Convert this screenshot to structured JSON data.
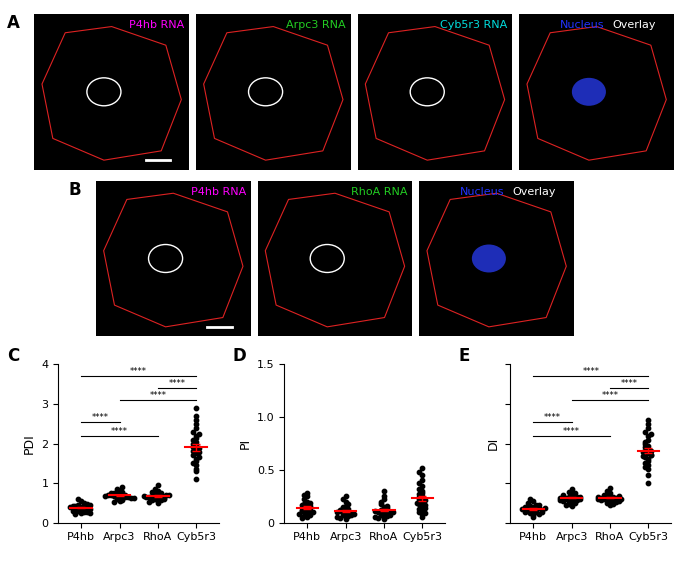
{
  "image_panels": [
    {
      "panel": "A",
      "images": [
        {
          "labels": [
            {
              "text": "P4hb RNA",
              "color": "#ff00ff"
            }
          ]
        },
        {
          "labels": [
            {
              "text": "Arpc3 RNA",
              "color": "#22cc22"
            }
          ]
        },
        {
          "labels": [
            {
              "text": "Cyb5r3 RNA",
              "color": "#00dddd"
            }
          ]
        },
        {
          "labels": [
            {
              "text": "Nucleus",
              "color": "#2233ff"
            },
            {
              "text": "Overlay",
              "color": "#ffffff"
            }
          ]
        }
      ]
    },
    {
      "panel": "B",
      "images": [
        {
          "labels": [
            {
              "text": "P4hb RNA",
              "color": "#ff00ff"
            }
          ]
        },
        {
          "labels": [
            {
              "text": "RhoA RNA",
              "color": "#22cc22"
            }
          ]
        },
        {
          "labels": [
            {
              "text": "Nucleus",
              "color": "#2233ff"
            },
            {
              "text": "Overlay",
              "color": "#ffffff"
            }
          ]
        }
      ]
    }
  ],
  "chart_data": [
    {
      "type": "scatter",
      "panel": "C",
      "y_label": "PDI",
      "marker": "o",
      "color": "#000000",
      "categories": [
        "P4hb",
        "Arpc3",
        "RhoA",
        "Cyb5r3"
      ],
      "values": [
        [
          0.25,
          0.3,
          0.35,
          0.4,
          0.45,
          0.5,
          0.28,
          0.33,
          0.38,
          0.42,
          0.22,
          0.48,
          0.36,
          0.31,
          0.55,
          0.27,
          0.41,
          0.37,
          0.44,
          0.3,
          0.34,
          0.39,
          0.6,
          0.24
        ],
        [
          0.55,
          0.6,
          0.65,
          0.7,
          0.75,
          0.8,
          0.62,
          0.68,
          0.72,
          0.58,
          0.85,
          0.66,
          0.7,
          0.64,
          0.78,
          0.52,
          0.69,
          0.74,
          0.61,
          0.9,
          0.67,
          0.71,
          0.63,
          0.76
        ],
        [
          0.5,
          0.55,
          0.6,
          0.65,
          0.7,
          0.75,
          0.8,
          0.58,
          0.63,
          0.68,
          0.72,
          0.95,
          0.62,
          0.66,
          0.7,
          0.57,
          0.85,
          0.64,
          0.69,
          0.6,
          0.74,
          0.67,
          0.53,
          0.78
        ],
        [
          1.1,
          1.3,
          1.45,
          1.55,
          1.6,
          1.7,
          1.75,
          1.8,
          1.85,
          1.9,
          1.95,
          2.0,
          2.05,
          2.1,
          2.2,
          2.3,
          2.4,
          2.5,
          2.6,
          2.9,
          1.65,
          1.88,
          2.15,
          1.5,
          1.78,
          2.7,
          1.35,
          2.25
        ]
      ],
      "mean": [
        0.38,
        0.69,
        0.68,
        1.9
      ],
      "error": [
        0.02,
        0.02,
        0.02,
        0.08
      ],
      "ylim": [
        0,
        4
      ],
      "yticks": [
        0,
        1,
        2,
        3,
        4
      ],
      "comparisons": [
        {
          "from": "P4hb",
          "to": "Cyb5r3",
          "y": 3.7,
          "label": "****"
        },
        {
          "from": "RhoA",
          "to": "Cyb5r3",
          "y": 3.4,
          "label": "****"
        },
        {
          "from": "Arpc3",
          "to": "Cyb5r3",
          "y": 3.1,
          "label": "****"
        },
        {
          "from": "P4hb",
          "to": "Arpc3",
          "y": 2.55,
          "label": "****"
        },
        {
          "from": "P4hb",
          "to": "RhoA",
          "y": 2.2,
          "label": "****"
        }
      ]
    },
    {
      "type": "scatter",
      "panel": "D",
      "y_label": "PI",
      "marker": "o",
      "color": "#000000",
      "categories": [
        "P4hb",
        "Arpc3",
        "RhoA",
        "Cyb5r3"
      ],
      "values": [
        [
          0.05,
          0.08,
          0.1,
          0.12,
          0.15,
          0.18,
          0.2,
          0.25,
          0.28,
          0.06,
          0.09,
          0.13,
          0.16,
          0.22,
          0.11,
          0.07,
          0.14,
          0.19,
          0.1,
          0.26,
          0.04,
          0.12,
          0.17,
          0.08
        ],
        [
          0.03,
          0.05,
          0.07,
          0.09,
          0.1,
          0.12,
          0.14,
          0.16,
          0.2,
          0.25,
          0.06,
          0.08,
          0.11,
          0.13,
          0.04,
          0.09,
          0.15,
          0.18,
          0.07,
          0.1,
          0.12,
          0.05,
          0.22,
          0.08
        ],
        [
          0.03,
          0.05,
          0.07,
          0.09,
          0.11,
          0.13,
          0.15,
          0.18,
          0.22,
          0.3,
          0.06,
          0.08,
          0.1,
          0.12,
          0.14,
          0.04,
          0.09,
          0.16,
          0.2,
          0.07,
          0.11,
          0.25,
          0.05,
          0.1
        ],
        [
          0.05,
          0.08,
          0.1,
          0.12,
          0.15,
          0.18,
          0.2,
          0.22,
          0.25,
          0.28,
          0.3,
          0.35,
          0.4,
          0.45,
          0.52,
          0.48,
          0.13,
          0.17,
          0.21,
          0.24,
          0.09,
          0.27,
          0.32,
          0.19,
          0.14,
          0.38
        ]
      ],
      "mean": [
        0.14,
        0.11,
        0.12,
        0.23
      ],
      "error": [
        0.013,
        0.011,
        0.012,
        0.022
      ],
      "ylim": [
        0,
        1.5
      ],
      "yticks": [
        0,
        0.5,
        {
          "value": 1,
          "label": "1.0"
        },
        1.5
      ],
      "comparisons": []
    },
    {
      "type": "scatter",
      "panel": "E",
      "y_label": "DI",
      "marker": "o",
      "color": "#000000",
      "tick_labels": "x",
      "categories": [
        "P4hb",
        "Arpc3",
        "RhoA",
        "Cyb5r3"
      ],
      "values": [
        [
          0.15,
          0.2,
          0.25,
          0.28,
          0.3,
          0.33,
          0.35,
          0.38,
          0.4,
          0.42,
          0.45,
          0.5,
          0.55,
          0.6,
          0.22,
          0.27,
          0.32,
          0.36,
          0.39,
          0.44,
          0.31,
          0.34,
          0.26,
          0.37
        ],
        [
          0.42,
          0.48,
          0.52,
          0.55,
          0.58,
          0.6,
          0.62,
          0.65,
          0.68,
          0.72,
          0.78,
          0.85,
          0.5,
          0.57,
          0.61,
          0.64,
          0.7,
          0.54,
          0.59,
          0.66,
          0.45,
          0.63,
          0.56,
          0.75
        ],
        [
          0.45,
          0.5,
          0.53,
          0.56,
          0.58,
          0.6,
          0.62,
          0.64,
          0.66,
          0.7,
          0.75,
          0.88,
          0.52,
          0.57,
          0.61,
          0.63,
          0.68,
          0.55,
          0.59,
          0.65,
          0.48,
          0.72,
          0.6,
          0.8
        ],
        [
          1.0,
          1.2,
          1.35,
          1.45,
          1.55,
          1.6,
          1.65,
          1.7,
          1.75,
          1.8,
          1.85,
          1.9,
          1.95,
          2.0,
          2.1,
          2.2,
          2.3,
          2.4,
          2.5,
          2.6,
          1.5,
          1.72,
          1.82,
          2.05,
          1.4,
          1.68,
          2.25,
          1.78
        ]
      ],
      "mean": [
        0.35,
        0.63,
        0.63,
        1.82
      ],
      "error": [
        0.02,
        0.02,
        0.02,
        0.07
      ],
      "ylim": [
        0,
        4
      ],
      "comparisons": [
        {
          "from": "P4hb",
          "to": "Cyb5r3",
          "y": 3.7,
          "label": "****"
        },
        {
          "from": "RhoA",
          "to": "Cyb5r3",
          "y": 3.4,
          "label": "****"
        },
        {
          "from": "Arpc3",
          "to": "Cyb5r3",
          "y": 3.1,
          "label": "****"
        },
        {
          "from": "P4hb",
          "to": "Arpc3",
          "y": 2.55,
          "label": "****"
        },
        {
          "from": "P4hb",
          "to": "RhoA",
          "y": 2.2,
          "label": "****"
        }
      ]
    }
  ]
}
